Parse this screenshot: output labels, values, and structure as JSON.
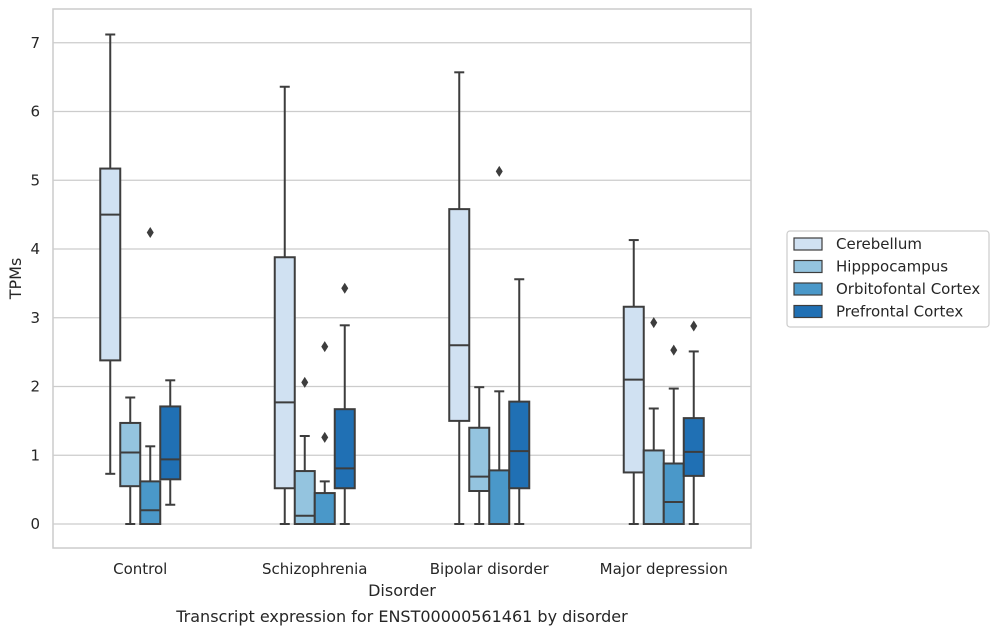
{
  "caption": "Transcript expression for ENST00000561461 by disorder",
  "chart_data": {
    "type": "box",
    "xlabel": "Disorder",
    "ylabel": "TPMs",
    "ylim": [
      -0.35,
      7.5
    ],
    "yticks": [
      0,
      1,
      2,
      3,
      4,
      5,
      6,
      7
    ],
    "grid": "horizontal",
    "legend_position": "right",
    "categories": [
      "Control",
      "Schizophrenia",
      "Bipolar disorder",
      "Major depression"
    ],
    "series": [
      {
        "name": "Cerebellum",
        "color": "#d0e1f2",
        "boxes": [
          {
            "whisker_low": 0.73,
            "q1": 2.38,
            "median": 4.5,
            "q3": 5.17,
            "whisker_high": 7.12,
            "outliers": []
          },
          {
            "whisker_low": 0.0,
            "q1": 0.52,
            "median": 1.77,
            "q3": 3.88,
            "whisker_high": 6.36,
            "outliers": []
          },
          {
            "whisker_low": 0.0,
            "q1": 1.5,
            "median": 2.6,
            "q3": 4.58,
            "whisker_high": 6.57,
            "outliers": []
          },
          {
            "whisker_low": 0.0,
            "q1": 0.75,
            "median": 2.1,
            "q3": 3.16,
            "whisker_high": 4.13,
            "outliers": []
          }
        ]
      },
      {
        "name": "Hipppocampus",
        "color": "#94c4df",
        "boxes": [
          {
            "whisker_low": 0.0,
            "q1": 0.55,
            "median": 1.04,
            "q3": 1.47,
            "whisker_high": 1.84,
            "outliers": []
          },
          {
            "whisker_low": 0.0,
            "q1": 0.0,
            "median": 0.12,
            "q3": 0.77,
            "whisker_high": 1.28,
            "outliers": [
              2.06
            ]
          },
          {
            "whisker_low": 0.0,
            "q1": 0.48,
            "median": 0.69,
            "q3": 1.4,
            "whisker_high": 1.99,
            "outliers": []
          },
          {
            "whisker_low": 0.0,
            "q1": 0.0,
            "median": 0.0,
            "q3": 1.07,
            "whisker_high": 1.68,
            "outliers": [
              2.93
            ]
          }
        ]
      },
      {
        "name": "Orbitofontal Cortex",
        "color": "#4a98c9",
        "boxes": [
          {
            "whisker_low": 0.0,
            "q1": 0.0,
            "median": 0.2,
            "q3": 0.62,
            "whisker_high": 1.13,
            "outliers": [
              4.24
            ]
          },
          {
            "whisker_low": 0.0,
            "q1": 0.0,
            "median": 0.0,
            "q3": 0.45,
            "whisker_high": 0.62,
            "outliers": [
              1.26,
              2.58
            ]
          },
          {
            "whisker_low": 0.0,
            "q1": 0.0,
            "median": 0.0,
            "q3": 0.78,
            "whisker_high": 1.93,
            "outliers": [
              5.13
            ]
          },
          {
            "whisker_low": 0.0,
            "q1": 0.0,
            "median": 0.32,
            "q3": 0.88,
            "whisker_high": 1.97,
            "outliers": [
              2.53
            ]
          }
        ]
      },
      {
        "name": "Prefrontal Cortex",
        "color": "#2070b4",
        "boxes": [
          {
            "whisker_low": 0.28,
            "q1": 0.65,
            "median": 0.94,
            "q3": 1.71,
            "whisker_high": 2.09,
            "outliers": []
          },
          {
            "whisker_low": 0.0,
            "q1": 0.52,
            "median": 0.81,
            "q3": 1.67,
            "whisker_high": 2.89,
            "outliers": [
              3.43
            ]
          },
          {
            "whisker_low": 0.0,
            "q1": 0.52,
            "median": 1.06,
            "q3": 1.78,
            "whisker_high": 3.56,
            "outliers": []
          },
          {
            "whisker_low": 0.0,
            "q1": 0.7,
            "median": 1.05,
            "q3": 1.54,
            "whisker_high": 2.51,
            "outliers": [
              2.88
            ]
          }
        ]
      }
    ]
  }
}
